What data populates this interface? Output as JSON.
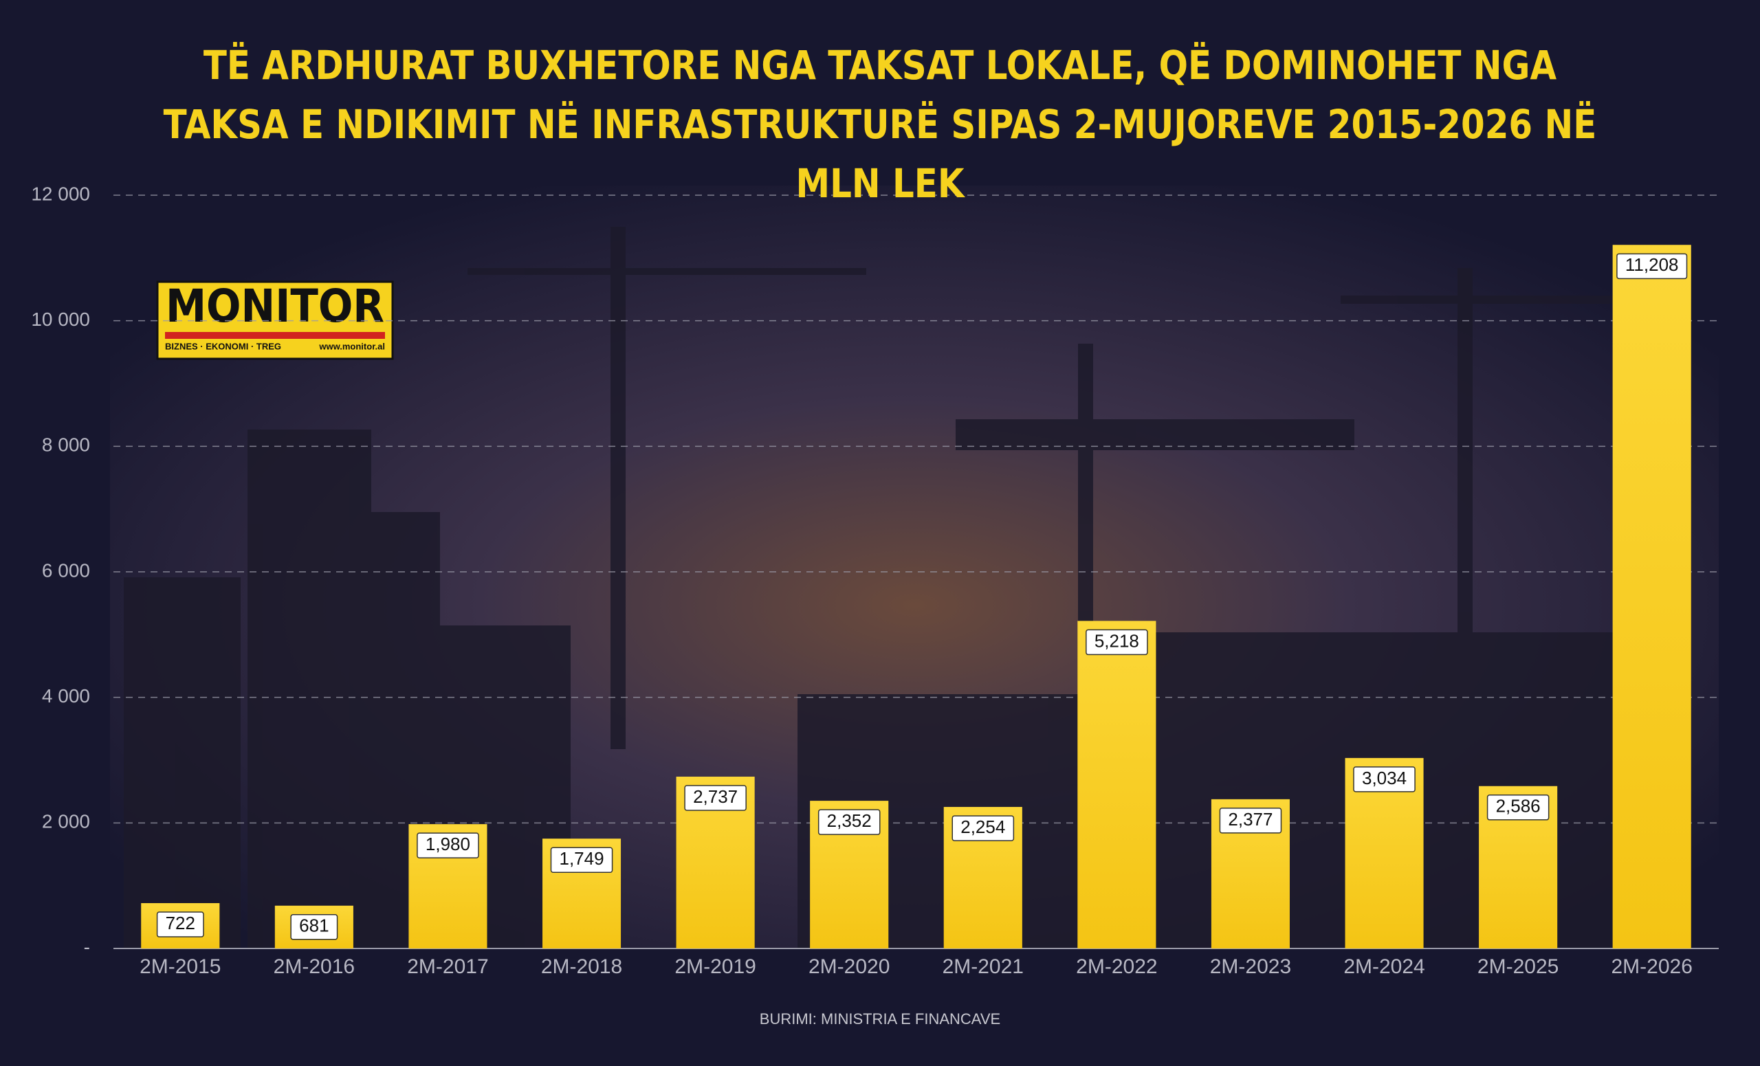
{
  "chart_data": {
    "type": "bar",
    "title": "TË ARDHURAT BUXHETORE NGA TAKSAT LOKALE, QË DOMINOHET NGA TAKSA E NDIKIMIT NË INFRASTRUKTURË SIPAS 2-MUJOREVE 2015-2026 NË MLN LEK",
    "categories": [
      "2M-2015",
      "2M-2016",
      "2M-2017",
      "2M-2018",
      "2M-2019",
      "2M-2020",
      "2M-2021",
      "2M-2022",
      "2M-2023",
      "2M-2024",
      "2M-2025",
      "2M-2026"
    ],
    "values": [
      722,
      681,
      1980,
      1749,
      2737,
      2352,
      2254,
      5218,
      2377,
      3034,
      2586,
      11208
    ],
    "value_labels": [
      "722",
      "681",
      "1,980",
      "1,749",
      "2,737",
      "2,352",
      "2,254",
      "5,218",
      "2,377",
      "3,034",
      "2,586",
      "11,208"
    ],
    "color": "#f7c91c",
    "ylim": [
      0,
      12000
    ],
    "yticks": [
      {
        "value": 0,
        "label": "-"
      },
      {
        "value": 2000,
        "label": "2 000"
      },
      {
        "value": 4000,
        "label": "4 000"
      },
      {
        "value": 6000,
        "label": "6 000"
      },
      {
        "value": 8000,
        "label": "8 000"
      },
      {
        "value": 10000,
        "label": "10 000"
      },
      {
        "value": 12000,
        "label": "12 000"
      }
    ],
    "grid": true,
    "source": "BURIMI: MINISTRIA E FINANCAVE"
  },
  "logo": {
    "name": "MONITOR",
    "tagline": "BIZNES · EKONOMI · TREG",
    "url": "www.monitor.al"
  }
}
